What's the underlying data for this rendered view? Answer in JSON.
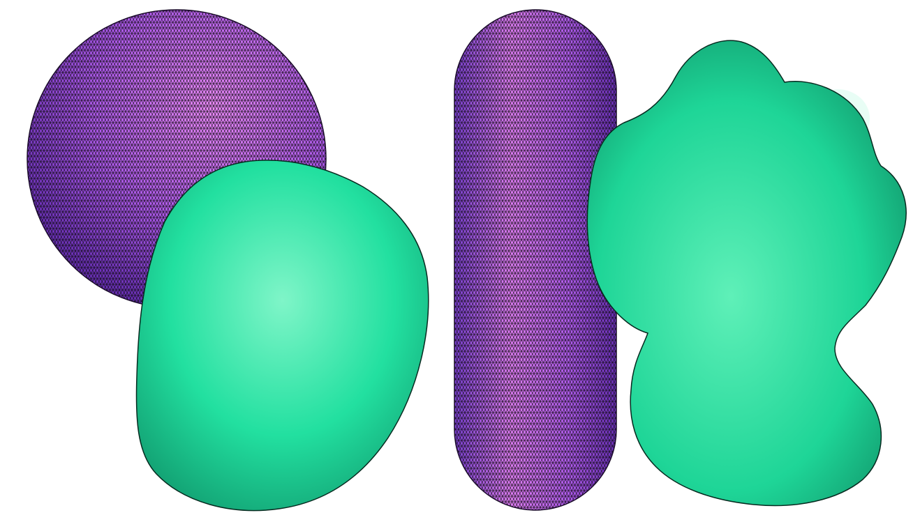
{
  "figure": {
    "background": "#ffffff",
    "mesh_line_color": "#0a0a0a",
    "groups": [
      {
        "name": "left-pair",
        "objects": [
          {
            "name": "purple-sphere",
            "shape": "sphere",
            "colors": {
              "light": "#f08cff",
              "mid": "#b35cf0",
              "dark": "#6a2fb8"
            }
          },
          {
            "name": "green-deformed-blob",
            "shape": "deformed-blob",
            "colors": {
              "light": "#7ff5c8",
              "mid": "#22e0a0",
              "dark": "#0b5e45"
            }
          }
        ]
      },
      {
        "name": "right-pair",
        "objects": [
          {
            "name": "purple-capsule",
            "shape": "capsule",
            "colors": {
              "light": "#f08cff",
              "mid": "#b35cf0",
              "dark": "#6a2fb8"
            }
          },
          {
            "name": "green-bumpy-blob",
            "shape": "bumpy-blob",
            "colors": {
              "light": "#7ff5c8",
              "mid": "#22e0a0",
              "dark": "#0b5e45"
            }
          }
        ]
      }
    ]
  }
}
